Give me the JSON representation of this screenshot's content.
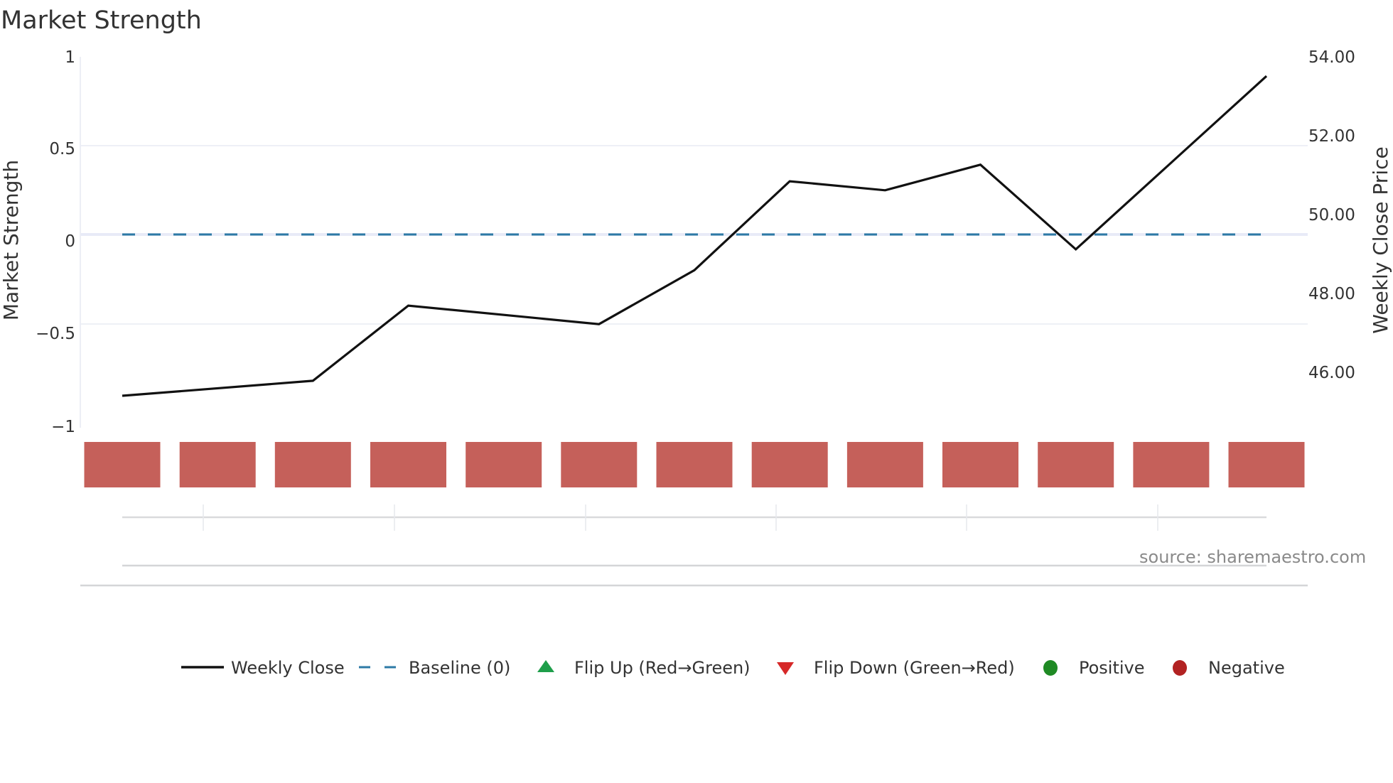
{
  "title": "Market Strength",
  "source_text": "source: sharemaestro.com",
  "colors": {
    "line": "#111111",
    "baseline": "#2e7aa6",
    "block_negative": "#c5605a",
    "block_positive": "#2e8b2e",
    "flip_up": "#1e9e4a",
    "flip_down": "#d62828",
    "positive": "#1f8a24",
    "negative": "#b22222",
    "grid": "#eef0f6",
    "slider": "#d6d6d6"
  },
  "chart_data": {
    "type": "line",
    "title": "Market Strength",
    "xlabel": "",
    "ylabel": "Market Strength",
    "y2label": "Weekly Close Price",
    "ylim": [
      -1,
      1
    ],
    "y2lim": [
      44.5,
      54.0
    ],
    "yticks": [
      "1",
      "0.5",
      "0",
      "−0.5",
      "−1"
    ],
    "ytick_values": [
      1,
      0.5,
      0,
      -0.5,
      -1
    ],
    "y2ticks": [
      "54.00",
      "52.00",
      "50.00",
      "48.00",
      "46.00"
    ],
    "y2tick_values": [
      54,
      52,
      50,
      48,
      46
    ],
    "grid": true,
    "legend_position": "bottom",
    "weeks": 13,
    "series": [
      {
        "name": "Weekly Close",
        "axis": "y2",
        "style": "solid",
        "week_index": [
          0,
          2,
          3,
          5,
          6,
          7,
          8,
          9,
          10,
          12
        ],
        "values": [
          45.39,
          45.77,
          47.68,
          47.21,
          48.58,
          50.84,
          50.61,
          51.26,
          49.11,
          53.51
        ]
      },
      {
        "name": "Baseline (0)",
        "axis": "y",
        "style": "dashed",
        "values": [
          0,
          0
        ]
      }
    ],
    "strength_blocks": {
      "count": 13,
      "states": [
        "negative",
        "negative",
        "negative",
        "negative",
        "negative",
        "negative",
        "negative",
        "negative",
        "negative",
        "negative",
        "negative",
        "negative",
        "negative"
      ]
    },
    "flip_up_markers": [],
    "flip_down_markers": []
  },
  "legend": [
    {
      "label": "Weekly Close",
      "icon": "solid-line-icon"
    },
    {
      "label": "Baseline (0)",
      "icon": "dashed-line-icon"
    },
    {
      "label": "Flip Up (Red→Green)",
      "icon": "triangle-up-icon"
    },
    {
      "label": "Flip Down (Green→Red)",
      "icon": "triangle-down-icon"
    },
    {
      "label": "Positive",
      "icon": "circle-green-icon"
    },
    {
      "label": "Negative",
      "icon": "circle-red-icon"
    }
  ]
}
